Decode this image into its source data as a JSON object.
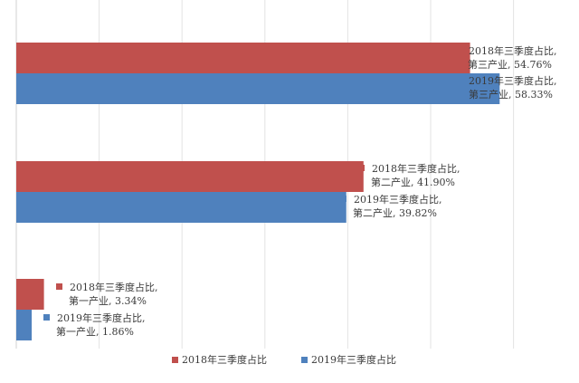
{
  "chart_data": {
    "type": "bar",
    "orientation": "horizontal",
    "categories": [
      "第三产业",
      "第二产业",
      "第一产业"
    ],
    "series": [
      {
        "name": "2018年三季度占比",
        "color": "#c0504d",
        "values": [
          54.76,
          41.9,
          3.34
        ],
        "labels": [
          [
            "2018年三季度占比,",
            "第三产业, 54.76%"
          ],
          [
            "2018年三季度占比,",
            "第二产业, 41.90%"
          ],
          [
            "2018年三季度占比,",
            "第一产业, 3.34%"
          ]
        ]
      },
      {
        "name": "2019年三季度占比",
        "color": "#4f81bd",
        "values": [
          58.33,
          39.82,
          1.86
        ],
        "labels": [
          [
            "2019年三季度占比,",
            "第三产业, 58.33%"
          ],
          [
            "2019年三季度占比,",
            "第二产业, 39.82%"
          ],
          [
            "2019年三季度占比,",
            "第一产业, 1.86%"
          ]
        ]
      }
    ],
    "xlim": [
      0,
      60
    ],
    "grid": true,
    "legend": "bottom"
  }
}
